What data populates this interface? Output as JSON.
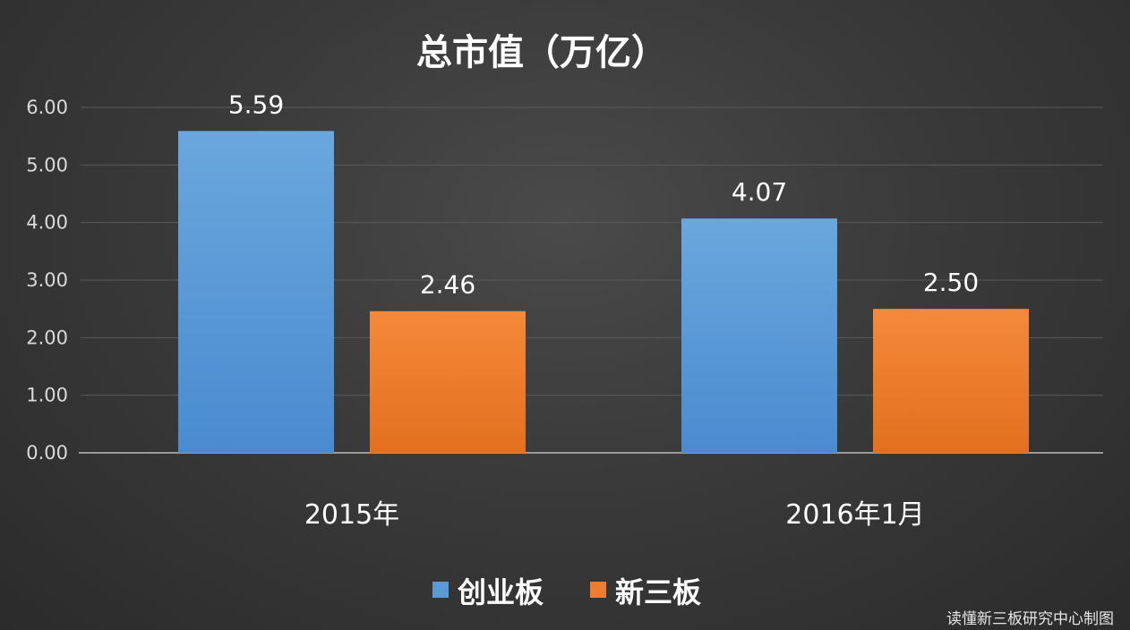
{
  "chart_data": {
    "type": "bar",
    "title": "总市值（万亿）",
    "categories": [
      "2015年",
      "2016年1月"
    ],
    "series": [
      {
        "name": "创业板",
        "values": [
          5.59,
          4.07
        ],
        "labels": [
          "5.59",
          "4.07"
        ],
        "color": "#5b9bd5"
      },
      {
        "name": "新三板",
        "values": [
          2.46,
          2.5
        ],
        "labels": [
          "2.46",
          "2.50"
        ],
        "color": "#ed7d31"
      }
    ],
    "ylim": [
      0,
      6
    ],
    "yticks": [
      "0.00",
      "1.00",
      "2.00",
      "3.00",
      "4.00",
      "5.00",
      "6.00"
    ],
    "grid": true,
    "legend": "bottom"
  },
  "credit": "读懂新三板研究中心制图"
}
